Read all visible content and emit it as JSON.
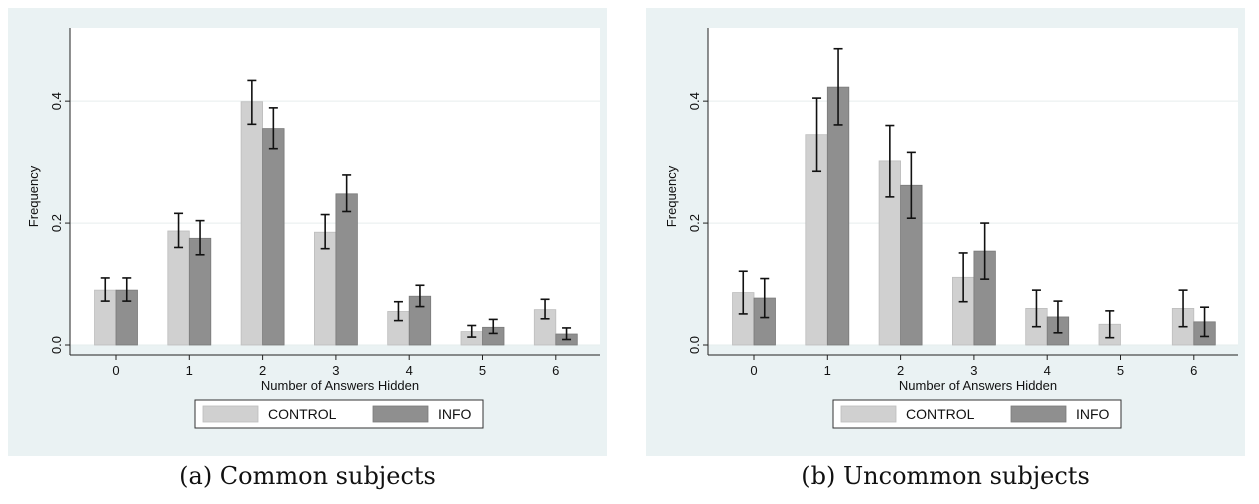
{
  "chart_data": [
    {
      "type": "bar",
      "caption": "(a) Common subjects",
      "xlabel": "Number of Answers Hidden",
      "ylabel": "Frequency",
      "categories": [
        "0",
        "1",
        "2",
        "3",
        "4",
        "5",
        "6"
      ],
      "yticks": [
        "0.0",
        "0.2",
        "0.4"
      ],
      "ylim": [
        0,
        0.52
      ],
      "grid": true,
      "legend_position": "bottom",
      "error_bars": true,
      "series": [
        {
          "name": "CONTROL",
          "color": "#d0d0d0",
          "values": [
            0.09,
            0.187,
            0.399,
            0.185,
            0.055,
            0.022,
            0.058
          ],
          "err_low": [
            0.072,
            0.16,
            0.362,
            0.158,
            0.04,
            0.013,
            0.043
          ],
          "err_high": [
            0.11,
            0.216,
            0.434,
            0.214,
            0.071,
            0.032,
            0.075
          ]
        },
        {
          "name": "INFO",
          "color": "#8f8f8f",
          "values": [
            0.09,
            0.175,
            0.355,
            0.248,
            0.08,
            0.029,
            0.018
          ],
          "err_low": [
            0.072,
            0.148,
            0.322,
            0.219,
            0.063,
            0.019,
            0.009
          ],
          "err_high": [
            0.11,
            0.204,
            0.389,
            0.279,
            0.098,
            0.042,
            0.028
          ]
        }
      ]
    },
    {
      "type": "bar",
      "caption": "(b) Uncommon subjects",
      "xlabel": "Number of Answers Hidden",
      "ylabel": "Frequency",
      "categories": [
        "0",
        "1",
        "2",
        "3",
        "4",
        "5",
        "6"
      ],
      "yticks": [
        "0.0",
        "0.2",
        "0.4"
      ],
      "ylim": [
        0,
        0.52
      ],
      "grid": true,
      "legend_position": "bottom",
      "error_bars": true,
      "series": [
        {
          "name": "CONTROL",
          "color": "#d0d0d0",
          "values": [
            0.086,
            0.345,
            0.302,
            0.111,
            0.06,
            0.034,
            0.06
          ],
          "err_low": [
            0.051,
            0.285,
            0.243,
            0.071,
            0.03,
            0.012,
            0.03
          ],
          "err_high": [
            0.121,
            0.405,
            0.36,
            0.151,
            0.09,
            0.056,
            0.09
          ]
        },
        {
          "name": "INFO",
          "color": "#8f8f8f",
          "values": [
            0.077,
            0.423,
            0.262,
            0.154,
            0.046,
            null,
            0.038
          ],
          "err_low": [
            0.045,
            0.361,
            0.208,
            0.108,
            0.02,
            null,
            0.014
          ],
          "err_high": [
            0.109,
            0.486,
            0.316,
            0.2,
            0.072,
            null,
            0.062
          ]
        }
      ]
    }
  ]
}
